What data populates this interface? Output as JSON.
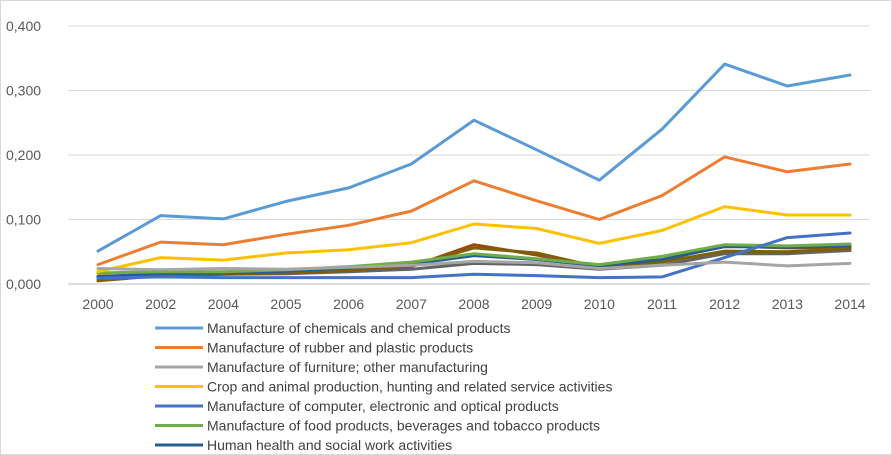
{
  "chart_data": {
    "type": "line",
    "title": "",
    "xlabel": "",
    "ylabel": "",
    "categories": [
      "2000",
      "2002",
      "2004",
      "2005",
      "2006",
      "2007",
      "2008",
      "2009",
      "2010",
      "2011",
      "2012",
      "2013",
      "2014"
    ],
    "yticks": [
      "0,000",
      "0,100",
      "0,200",
      "0,300",
      "0,400"
    ],
    "ylim": [
      0,
      0.4
    ],
    "grid": "horizontal",
    "legend_position": "bottom",
    "series": [
      {
        "name": "Manufacture of chemicals and chemical products",
        "color": "#5b9bd5",
        "in_legend": true,
        "values": [
          0.051,
          0.106,
          0.101,
          0.128,
          0.149,
          0.186,
          0.254,
          0.208,
          0.161,
          0.24,
          0.341,
          0.307,
          0.324
        ]
      },
      {
        "name": "Manufacture of rubber and plastic products",
        "color": "#ed7d31",
        "in_legend": true,
        "values": [
          0.03,
          0.065,
          0.061,
          0.077,
          0.091,
          0.113,
          0.16,
          0.129,
          0.1,
          0.137,
          0.197,
          0.174,
          0.186
        ]
      },
      {
        "name": "Manufacture of furniture; other manufacturing",
        "color": "#a5a5a5",
        "in_legend": true,
        "values": [
          0.024,
          0.022,
          0.024,
          0.023,
          0.026,
          0.029,
          0.035,
          0.033,
          0.024,
          0.029,
          0.034,
          0.028,
          0.032
        ]
      },
      {
        "name": "Crop and animal production, hunting and related service activities",
        "color": "#ffc000",
        "in_legend": true,
        "values": [
          0.019,
          0.041,
          0.037,
          0.048,
          0.053,
          0.064,
          0.093,
          0.086,
          0.063,
          0.083,
          0.12,
          0.107,
          0.107
        ]
      },
      {
        "name": "Manufacture of computer, electronic and optical products",
        "color": "#4472c4",
        "in_legend": true,
        "values": [
          0.009,
          0.011,
          0.01,
          0.01,
          0.01,
          0.01,
          0.015,
          0.013,
          0.01,
          0.011,
          0.041,
          0.072,
          0.079
        ]
      },
      {
        "name": "Manufacture of food products, beverages and tobacco products",
        "color": "#70ad47",
        "in_legend": true,
        "values": [
          0.017,
          0.019,
          0.019,
          0.022,
          0.027,
          0.034,
          0.047,
          0.039,
          0.03,
          0.043,
          0.061,
          0.059,
          0.062
        ]
      },
      {
        "name": "Human health and social work activities",
        "color": "#255e91",
        "in_legend": true,
        "values": [
          0.011,
          0.016,
          0.017,
          0.02,
          0.025,
          0.031,
          0.044,
          0.038,
          0.028,
          0.038,
          0.058,
          0.057,
          0.059
        ]
      },
      {
        "color": "#7f6000",
        "in_legend": false,
        "values": [
          0.005,
          0.013,
          0.015,
          0.017,
          0.021,
          0.028,
          0.056,
          0.048,
          0.026,
          0.034,
          0.051,
          0.05,
          0.055
        ]
      },
      {
        "color": "#636363",
        "in_legend": false,
        "values": [
          0.008,
          0.014,
          0.015,
          0.016,
          0.019,
          0.023,
          0.032,
          0.03,
          0.023,
          0.029,
          0.047,
          0.047,
          0.052
        ]
      },
      {
        "color": "#9e480e",
        "in_legend": false,
        "values": [
          0.012,
          0.015,
          0.016,
          0.018,
          0.022,
          0.027,
          0.061,
          0.045,
          0.026,
          0.037,
          0.059,
          0.056,
          0.057
        ]
      }
    ]
  }
}
